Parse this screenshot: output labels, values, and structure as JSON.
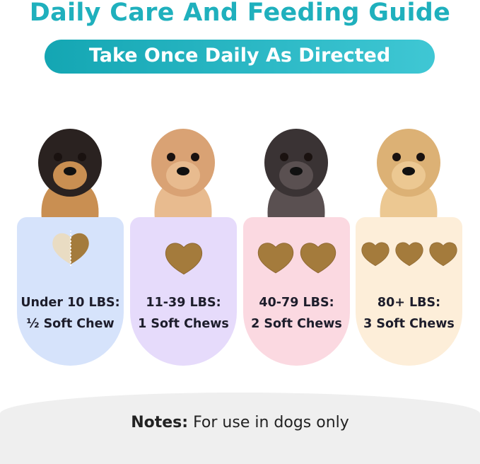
{
  "title": "Daily Care And Feeding Guide",
  "subtitle": "Take Once Daily As Directed",
  "colors": {
    "title": "#1fb0bd",
    "chew": "#a47b3c"
  },
  "dosages": [
    {
      "weight": "Under 10 LBS:",
      "dose": "½ Soft Chew",
      "chews": 0.5,
      "card_color": "#d6e3fb",
      "dog": "chihuahua"
    },
    {
      "weight": "11-39 LBS:",
      "dose": "1 Soft Chews",
      "chews": 1,
      "card_color": "#e6dbfb",
      "dog": "poodle"
    },
    {
      "weight": "40-79 LBS:",
      "dose": "2 Soft Chews",
      "chews": 2,
      "card_color": "#fbd9e1",
      "dog": "french-bulldog"
    },
    {
      "weight": "80+ LBS:",
      "dose": "3 Soft Chews",
      "chews": 3,
      "card_color": "#fdeed9",
      "dog": "golden-retriever"
    }
  ],
  "notes": {
    "label": "Notes:",
    "text": "For use in dogs only"
  }
}
